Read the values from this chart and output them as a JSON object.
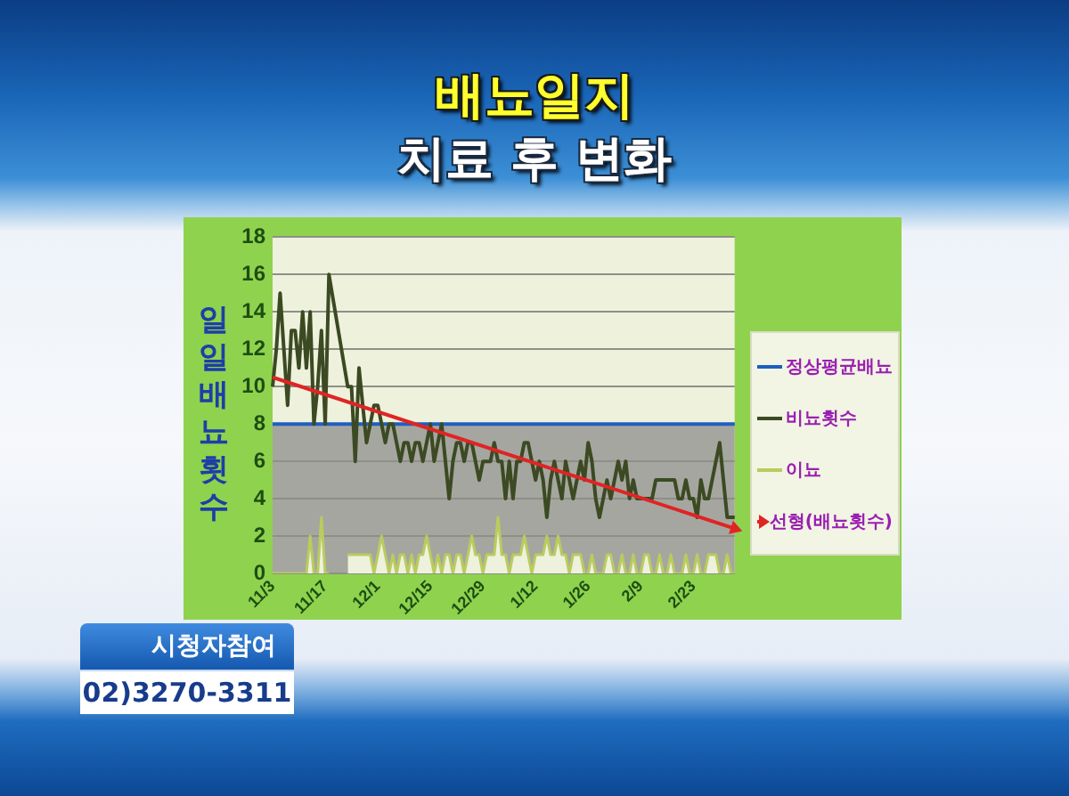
{
  "chart_data": {
    "type": "line",
    "title": "배뇨일지",
    "subtitle": "치료 후 변화",
    "ylabel": "일일배뇨횟수",
    "categories": [
      "11/3",
      null,
      null,
      null,
      null,
      null,
      null,
      null,
      null,
      null,
      null,
      null,
      null,
      null,
      "11/17",
      null,
      null,
      null,
      null,
      null,
      null,
      null,
      null,
      null,
      null,
      null,
      null,
      null,
      "12/1",
      null,
      null,
      null,
      null,
      null,
      null,
      null,
      null,
      null,
      null,
      null,
      null,
      null,
      "12/15",
      null,
      null,
      null,
      null,
      null,
      null,
      null,
      null,
      null,
      null,
      null,
      null,
      null,
      "12/29",
      null,
      null,
      null,
      null,
      null,
      null,
      null,
      null,
      null,
      null,
      null,
      null,
      null,
      "1/12",
      null,
      null,
      null,
      null,
      null,
      null,
      null,
      null,
      null,
      null,
      null,
      null,
      null,
      "1/26",
      null,
      null,
      null,
      null,
      null,
      null,
      null,
      null,
      null,
      null,
      null,
      null,
      null,
      "2/9",
      null,
      null,
      null,
      null,
      null,
      null,
      null,
      null,
      null,
      null,
      null,
      null,
      null,
      "2/23",
      null,
      null,
      null,
      null,
      null,
      null,
      null,
      null,
      null,
      null,
      null
    ],
    "series": [
      {
        "name": "정상평균배뇨",
        "color": "#1f5fbf",
        "values": [
          8,
          8,
          8,
          8,
          8,
          8,
          8,
          8,
          8,
          8,
          8,
          8,
          8,
          8,
          8,
          8,
          8,
          8,
          8,
          8,
          8,
          8,
          8,
          8,
          8,
          8,
          8,
          8,
          8,
          8,
          8,
          8,
          8,
          8,
          8,
          8,
          8,
          8,
          8,
          8,
          8,
          8,
          8,
          8,
          8,
          8,
          8,
          8,
          8,
          8,
          8,
          8,
          8,
          8,
          8,
          8,
          8,
          8,
          8,
          8,
          8,
          8,
          8,
          8,
          8,
          8,
          8,
          8,
          8,
          8,
          8,
          8,
          8,
          8,
          8,
          8,
          8,
          8,
          8,
          8,
          8,
          8,
          8,
          8,
          8,
          8,
          8,
          8,
          8,
          8,
          8,
          8,
          8,
          8,
          8,
          8,
          8,
          8,
          8,
          8,
          8,
          8,
          8,
          8,
          8,
          8,
          8,
          8,
          8,
          8,
          8,
          8,
          8,
          8,
          8,
          8,
          8,
          8,
          8,
          8,
          8,
          8,
          8,
          8
        ]
      },
      {
        "name": "비뇨횟수",
        "color": "#3b4a22",
        "values": [
          10,
          12,
          15,
          12,
          9,
          13,
          13,
          11,
          14,
          11,
          14,
          8,
          10,
          13,
          8,
          16,
          null,
          null,
          null,
          null,
          10,
          10,
          6,
          11,
          9,
          7,
          8,
          9,
          9,
          8,
          7,
          8,
          8,
          7,
          6,
          7,
          7,
          6,
          7,
          7,
          6,
          7,
          8,
          6,
          7,
          8,
          6,
          4,
          6,
          7,
          7,
          6,
          7,
          7,
          6,
          5,
          6,
          6,
          6,
          7,
          6,
          6,
          4,
          6,
          4,
          6,
          6,
          7,
          7,
          6,
          5,
          6,
          5,
          3,
          5,
          6,
          5,
          4,
          6,
          5,
          4,
          5,
          6,
          5,
          7,
          6,
          4,
          3,
          4,
          5,
          4,
          5,
          6,
          5,
          6,
          4,
          5,
          4,
          4,
          4,
          4,
          4,
          5,
          5,
          5,
          5,
          5,
          5,
          4,
          4,
          5,
          4,
          4,
          3,
          5,
          4,
          4,
          5,
          6,
          7,
          5,
          3,
          3,
          3
        ]
      },
      {
        "name": "이뇨",
        "type": "area",
        "color": "#b9cc5e",
        "values": [
          0,
          0,
          0,
          0,
          0,
          0,
          0,
          0,
          0,
          0,
          2,
          0,
          0,
          3,
          0,
          0,
          null,
          null,
          null,
          null,
          1,
          1,
          1,
          1,
          1,
          1,
          1,
          0,
          1,
          2,
          1,
          0,
          1,
          0,
          1,
          1,
          0,
          1,
          0,
          1,
          1,
          2,
          1,
          0,
          1,
          0,
          1,
          1,
          0,
          1,
          1,
          0,
          1,
          2,
          1,
          1,
          0,
          1,
          1,
          1,
          3,
          1,
          1,
          0,
          1,
          1,
          1,
          2,
          1,
          0,
          1,
          1,
          1,
          2,
          1,
          1,
          2,
          1,
          1,
          0,
          1,
          1,
          1,
          0,
          0,
          1,
          0,
          0,
          0,
          1,
          1,
          0,
          0,
          1,
          0,
          0,
          1,
          0,
          0,
          1,
          1,
          0,
          0,
          1,
          0,
          0,
          1,
          0,
          0,
          0,
          1,
          0,
          0,
          1,
          0,
          0,
          1,
          1,
          1,
          0,
          0,
          1,
          0,
          0
        ]
      },
      {
        "name": "선형(배뇨횟수)",
        "color": "#e02424",
        "values": [
          10.5,
          null,
          null,
          null,
          null,
          null,
          null,
          null,
          null,
          null,
          null,
          null,
          null,
          null,
          null,
          null,
          null,
          null,
          null,
          null,
          null,
          null,
          null,
          null,
          null,
          null,
          null,
          null,
          null,
          null,
          null,
          null,
          null,
          null,
          null,
          null,
          null,
          null,
          null,
          null,
          null,
          null,
          null,
          null,
          null,
          null,
          null,
          null,
          null,
          null,
          null,
          null,
          null,
          null,
          null,
          null,
          null,
          null,
          null,
          null,
          null,
          null,
          null,
          null,
          null,
          null,
          null,
          null,
          null,
          null,
          null,
          null,
          null,
          null,
          null,
          null,
          null,
          null,
          null,
          null,
          null,
          null,
          null,
          null,
          null,
          null,
          null,
          null,
          null,
          null,
          null,
          null,
          null,
          null,
          null,
          null,
          null,
          null,
          null,
          null,
          null,
          null,
          null,
          null,
          null,
          null,
          null,
          null,
          null,
          null,
          null,
          null,
          null,
          null,
          null,
          null,
          null,
          null,
          null,
          null,
          null,
          null,
          null,
          2.4
        ]
      }
    ],
    "bands": [
      {
        "axis": "y",
        "from": 0,
        "to": 8,
        "color": "#a6a6a0"
      }
    ],
    "ylim": [
      0,
      18
    ],
    "yticks": [
      0,
      2,
      4,
      6,
      8,
      10,
      12,
      14,
      16,
      18
    ],
    "grid": "y",
    "legend": "right",
    "annotations": [
      "시청자참여",
      "02)3270-3311"
    ]
  }
}
